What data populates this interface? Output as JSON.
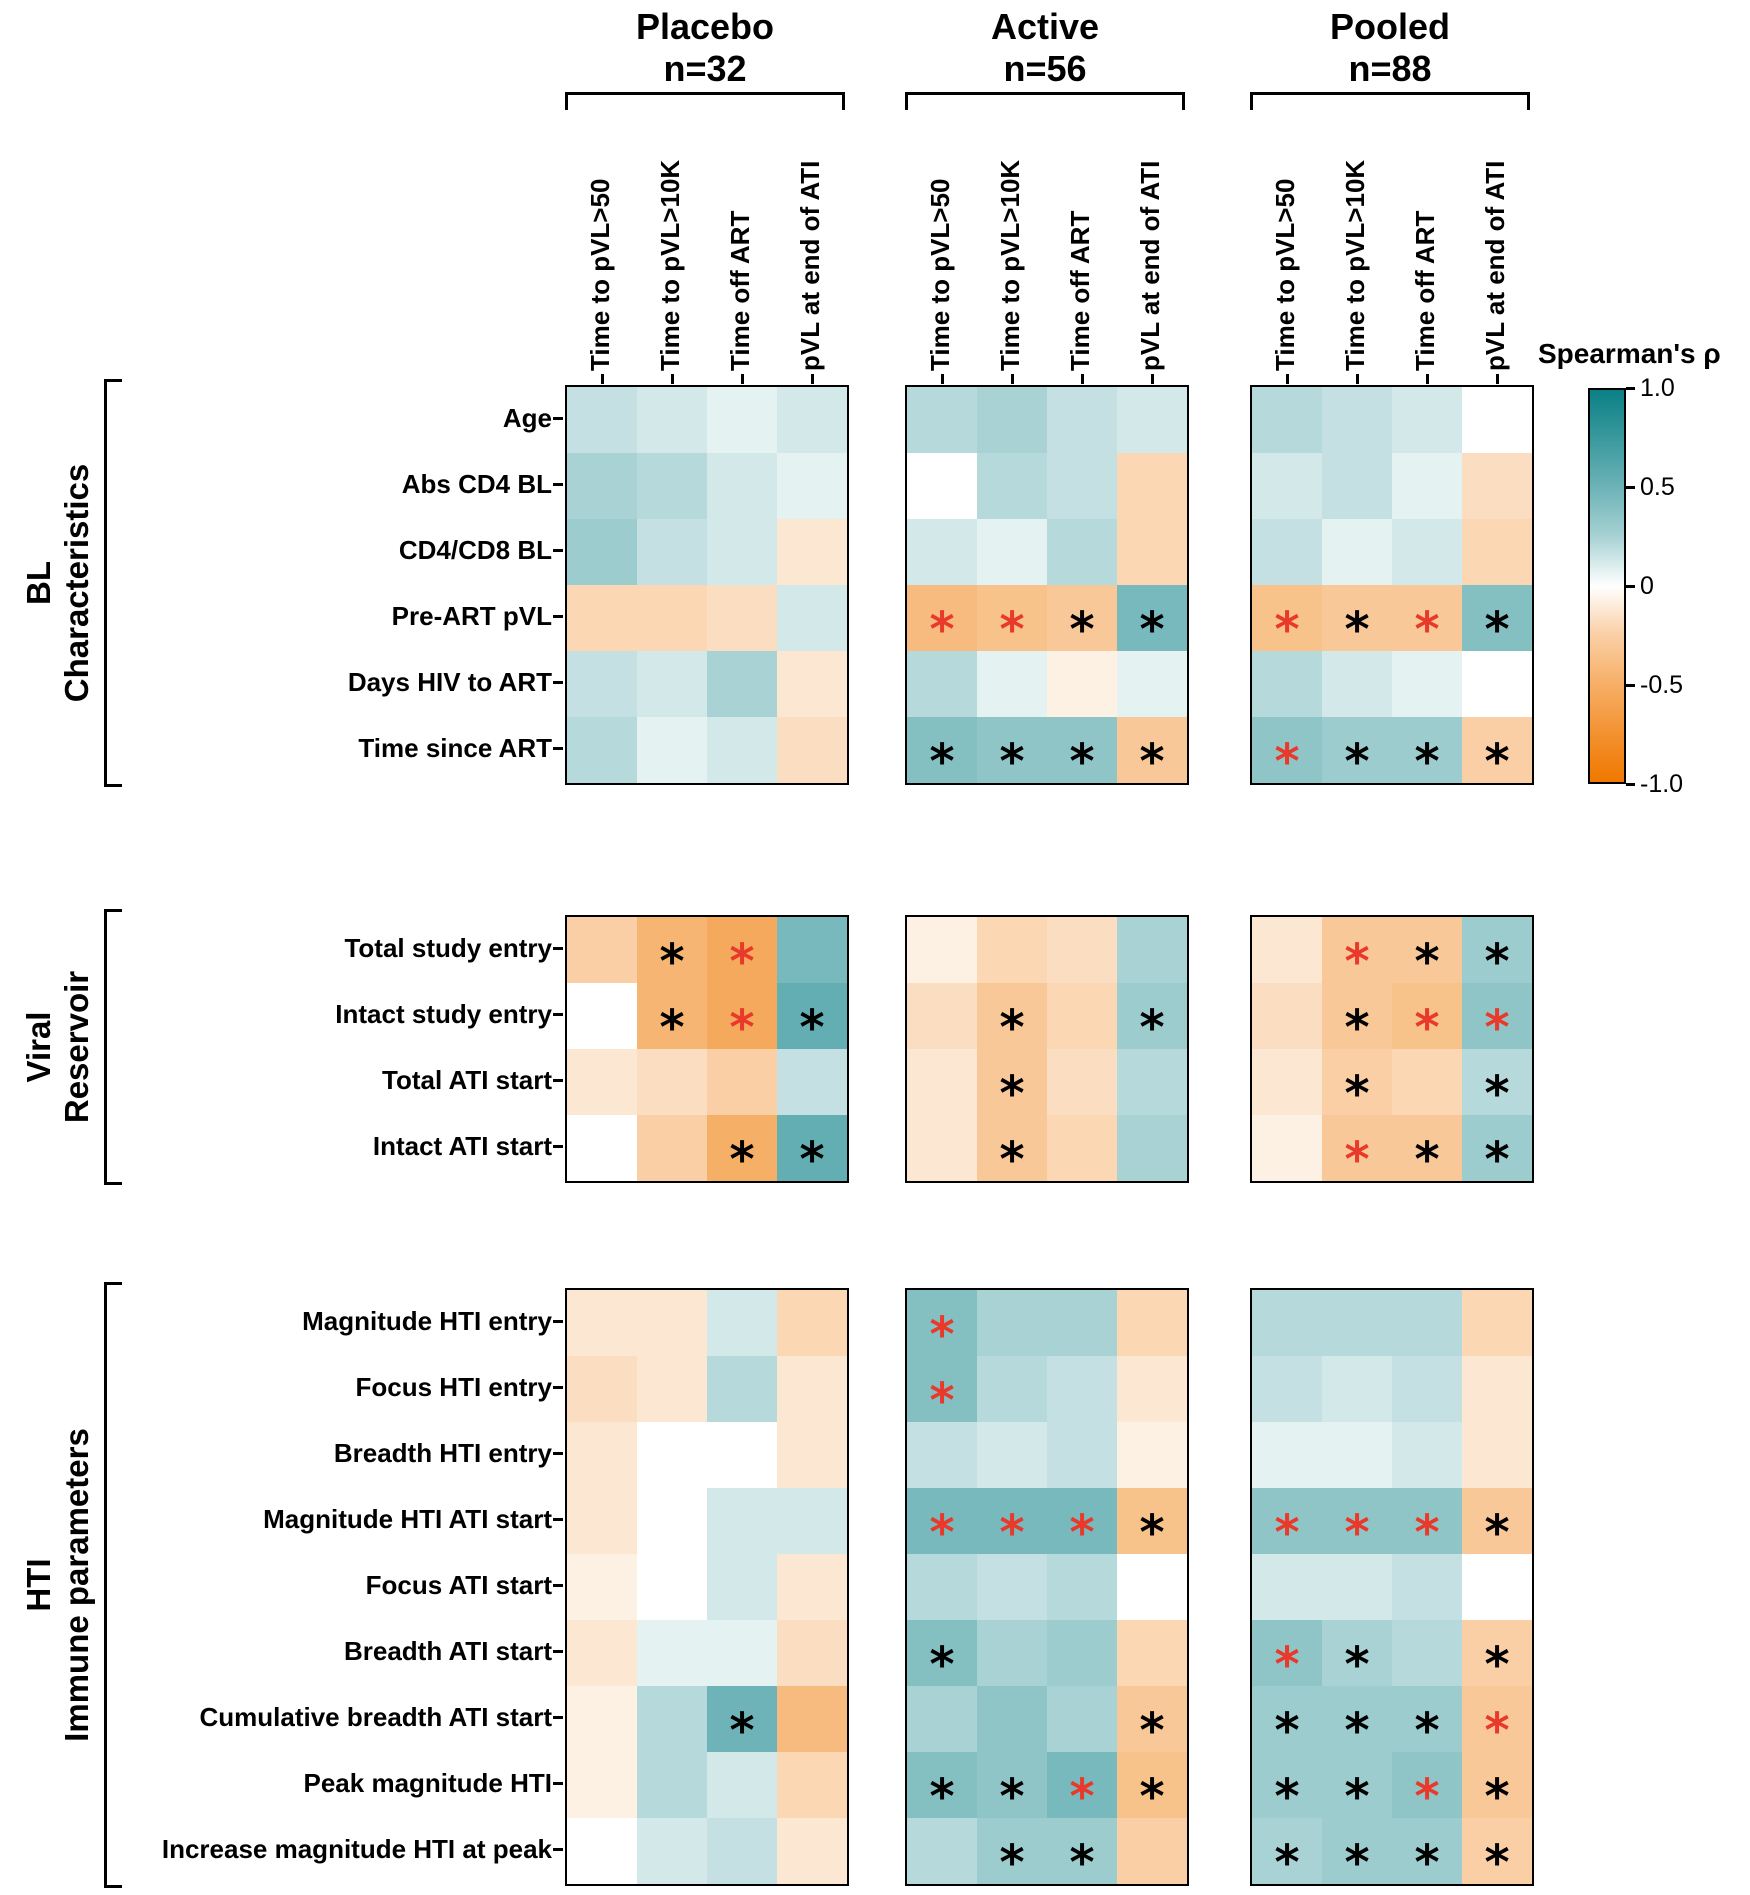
{
  "legend": {
    "title": "Spearman's ρ",
    "ticks": [
      "1.0",
      "0.5",
      "0",
      "-0.5",
      "-1.0"
    ],
    "color_positive": "#0A8086",
    "color_zero": "#FFFFFF",
    "color_negative": "#F07800",
    "star_black": "#000000",
    "star_red": "#E8392B"
  },
  "chart_data": {
    "type": "heatmap",
    "value_label": "Spearman's ρ",
    "value_range": [
      -1,
      1
    ],
    "star_char": "*",
    "sig_key": {
      ".": "no asterisk",
      "b": "black asterisk",
      "r": "red asterisk"
    },
    "columns": [
      "Time to pVL>50",
      "Time to pVL>10K",
      "Time off ART",
      "pVL at end of ATI"
    ],
    "row_groups": [
      {
        "label_lines": [
          "BL",
          "Characteristics"
        ],
        "rows": [
          "Age",
          "Abs CD4 BL",
          "CD4/CD8 BL",
          "Pre-ART pVL",
          "Days HIV to ART",
          "Time since ART"
        ]
      },
      {
        "label_lines": [
          "Viral",
          "Reservoir"
        ],
        "rows": [
          "Total study entry",
          "Intact study entry",
          "Total ATI start",
          "Intact ATI start"
        ]
      },
      {
        "label_lines": [
          "HTI",
          "Immune parameters"
        ],
        "rows": [
          "Magnitude HTI entry",
          "Focus HTI entry",
          "Breadth HTI entry",
          "Magnitude HTI ATI start",
          "Focus ATI start",
          "Breadth ATI start",
          "Cumulative breadth ATI start",
          "Peak magnitude HTI",
          "Increase magnitude HTI at peak"
        ]
      }
    ],
    "panels": [
      {
        "name": "Placebo",
        "n": "n=32",
        "groups": [
          {
            "values": [
              [
                0.15,
                0.1,
                0.05,
                0.1
              ],
              [
                0.25,
                0.2,
                0.1,
                0.05
              ],
              [
                0.3,
                0.15,
                0.1,
                -0.1
              ],
              [
                -0.2,
                -0.2,
                -0.15,
                0.1
              ],
              [
                0.15,
                0.1,
                0.25,
                -0.1
              ],
              [
                0.2,
                0.05,
                0.1,
                -0.15
              ]
            ],
            "sig": [
              "....",
              "....",
              "....",
              "....",
              "....",
              "...."
            ]
          },
          {
            "values": [
              [
                -0.25,
                -0.45,
                -0.55,
                0.45
              ],
              [
                0.0,
                -0.45,
                -0.55,
                0.55
              ],
              [
                -0.1,
                -0.15,
                -0.25,
                0.15
              ],
              [
                0.0,
                -0.25,
                -0.5,
                0.55
              ]
            ],
            "sig": [
              ".br.",
              ".brb",
              "....",
              "..bb"
            ]
          },
          {
            "values": [
              [
                -0.1,
                -0.1,
                0.1,
                -0.2
              ],
              [
                -0.15,
                -0.1,
                0.2,
                -0.1
              ],
              [
                -0.1,
                0.0,
                0.0,
                -0.1
              ],
              [
                -0.1,
                0.0,
                0.1,
                0.1
              ],
              [
                -0.05,
                0.0,
                0.1,
                -0.1
              ],
              [
                -0.1,
                0.05,
                0.05,
                -0.15
              ],
              [
                -0.05,
                0.2,
                0.5,
                -0.4
              ],
              [
                -0.05,
                0.2,
                0.1,
                -0.2
              ],
              [
                0.0,
                0.1,
                0.15,
                -0.1
              ]
            ],
            "sig": [
              "....",
              "....",
              "....",
              "....",
              "....",
              "....",
              "..b.",
              "....",
              "...."
            ]
          }
        ]
      },
      {
        "name": "Active",
        "n": "n=56",
        "groups": [
          {
            "values": [
              [
                0.2,
                0.25,
                0.15,
                0.1
              ],
              [
                0.0,
                0.2,
                0.15,
                -0.2
              ],
              [
                0.1,
                0.05,
                0.2,
                -0.2
              ],
              [
                -0.4,
                -0.35,
                -0.3,
                0.45
              ],
              [
                0.2,
                0.05,
                -0.05,
                0.05
              ],
              [
                0.4,
                0.35,
                0.35,
                -0.3
              ]
            ],
            "sig": [
              "....",
              "....",
              "....",
              "rrbb",
              "....",
              "bbbb"
            ]
          },
          {
            "values": [
              [
                -0.05,
                -0.2,
                -0.15,
                0.25
              ],
              [
                -0.15,
                -0.3,
                -0.2,
                0.3
              ],
              [
                -0.1,
                -0.3,
                -0.15,
                0.2
              ],
              [
                -0.1,
                -0.3,
                -0.2,
                0.25
              ]
            ],
            "sig": [
              "....",
              ".b.b",
              ".b..",
              ".b.."
            ]
          },
          {
            "values": [
              [
                0.4,
                0.25,
                0.25,
                -0.2
              ],
              [
                0.4,
                0.2,
                0.15,
                -0.1
              ],
              [
                0.15,
                0.1,
                0.15,
                -0.05
              ],
              [
                0.45,
                0.45,
                0.45,
                -0.35
              ],
              [
                0.2,
                0.15,
                0.2,
                0.0
              ],
              [
                0.4,
                0.25,
                0.3,
                -0.2
              ],
              [
                0.25,
                0.35,
                0.25,
                -0.3
              ],
              [
                0.4,
                0.35,
                0.45,
                -0.35
              ],
              [
                0.2,
                0.3,
                0.3,
                -0.25
              ]
            ],
            "sig": [
              "r...",
              "r...",
              "....",
              "rrrb",
              "....",
              "b...",
              "...b",
              "bbrb",
              ".bb."
            ]
          }
        ]
      },
      {
        "name": "Pooled",
        "n": "n=88",
        "groups": [
          {
            "values": [
              [
                0.2,
                0.15,
                0.1,
                0.0
              ],
              [
                0.1,
                0.15,
                0.05,
                -0.15
              ],
              [
                0.15,
                0.05,
                0.1,
                -0.2
              ],
              [
                -0.35,
                -0.3,
                -0.3,
                0.4
              ],
              [
                0.2,
                0.1,
                0.05,
                0.0
              ],
              [
                0.35,
                0.3,
                0.3,
                -0.25
              ]
            ],
            "sig": [
              "....",
              "....",
              "....",
              "rbrb",
              "....",
              "rbbb"
            ]
          },
          {
            "values": [
              [
                -0.1,
                -0.3,
                -0.3,
                0.3
              ],
              [
                -0.15,
                -0.3,
                -0.35,
                0.35
              ],
              [
                -0.1,
                -0.25,
                -0.2,
                0.2
              ],
              [
                -0.05,
                -0.3,
                -0.3,
                0.3
              ]
            ],
            "sig": [
              ".rbb",
              ".brr",
              ".b.b",
              ".rbb"
            ]
          },
          {
            "values": [
              [
                0.2,
                0.2,
                0.2,
                -0.2
              ],
              [
                0.15,
                0.1,
                0.15,
                -0.1
              ],
              [
                0.05,
                0.05,
                0.1,
                -0.1
              ],
              [
                0.35,
                0.35,
                0.35,
                -0.3
              ],
              [
                0.1,
                0.1,
                0.15,
                0.0
              ],
              [
                0.35,
                0.25,
                0.2,
                -0.25
              ],
              [
                0.3,
                0.3,
                0.3,
                -0.3
              ],
              [
                0.3,
                0.3,
                0.35,
                -0.3
              ],
              [
                0.25,
                0.3,
                0.3,
                -0.25
              ]
            ],
            "sig": [
              "....",
              "....",
              "....",
              "rrrb",
              "....",
              "rb.b",
              "bbbr",
              "bbrb",
              "bbbb"
            ]
          }
        ]
      }
    ]
  }
}
